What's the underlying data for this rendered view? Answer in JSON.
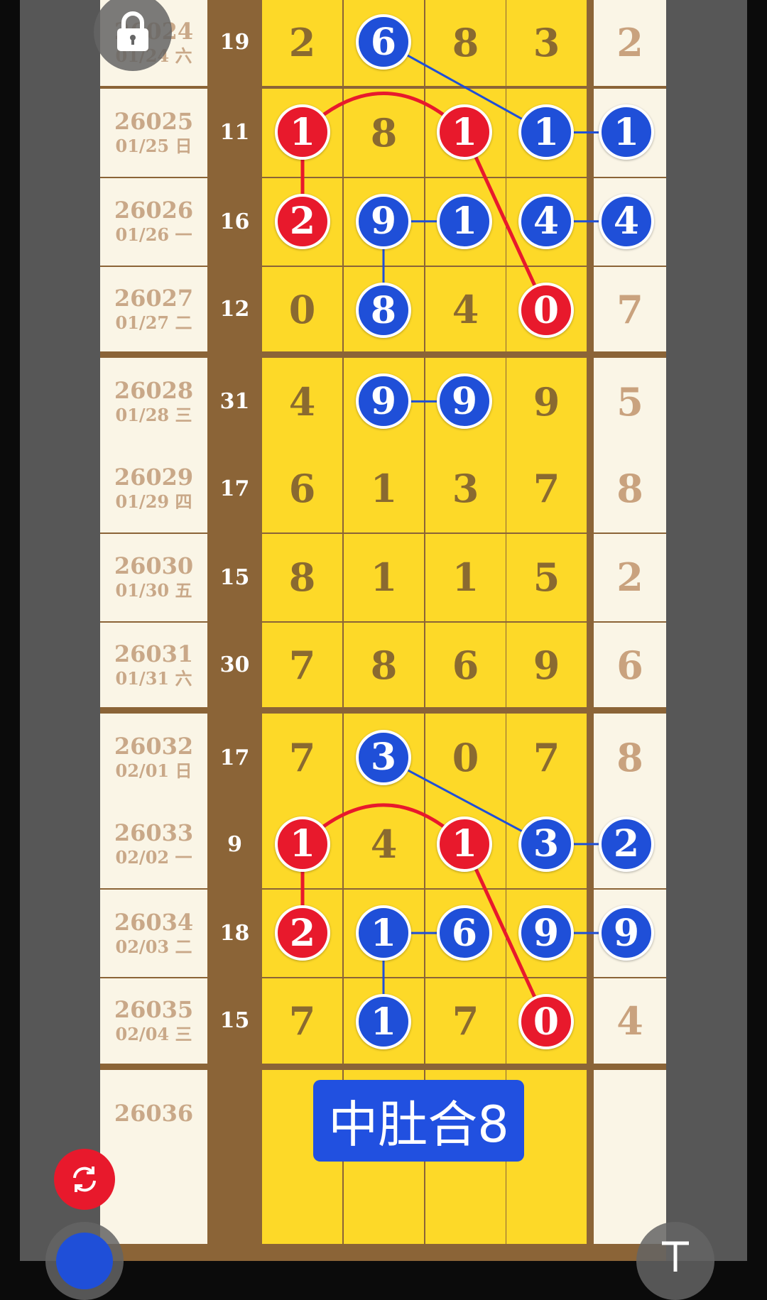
{
  "colors": {
    "red": "#e8192c",
    "blue": "#1f4fd8",
    "yellow": "#fdd928",
    "brown": "#8b6437",
    "cream": "#faf5e6"
  },
  "rows": [
    {
      "issue": "26024",
      "date": "01/24 六",
      "sum": "19",
      "nums": [
        "2",
        "6",
        "8",
        "3"
      ],
      "right": "2",
      "marks": [
        "",
        "b",
        "",
        "",
        ""
      ]
    },
    {
      "issue": "26025",
      "date": "01/25 日",
      "sum": "11",
      "nums": [
        "1",
        "8",
        "1",
        "1"
      ],
      "right": "1",
      "marks": [
        "r",
        "",
        "r",
        "b",
        "b"
      ]
    },
    {
      "issue": "26026",
      "date": "01/26 一",
      "sum": "16",
      "nums": [
        "2",
        "9",
        "1",
        "4"
      ],
      "right": "4",
      "marks": [
        "r",
        "b",
        "b",
        "b",
        "b"
      ]
    },
    {
      "issue": "26027",
      "date": "01/27 二",
      "sum": "12",
      "nums": [
        "0",
        "8",
        "4",
        "0"
      ],
      "right": "7",
      "marks": [
        "",
        "b",
        "",
        "r",
        ""
      ]
    },
    {
      "issue": "26028",
      "date": "01/28 三",
      "sum": "31",
      "nums": [
        "4",
        "9",
        "9",
        "9"
      ],
      "right": "5",
      "marks": [
        "",
        "b",
        "b",
        "",
        ""
      ]
    },
    {
      "issue": "26029",
      "date": "01/29 四",
      "sum": "17",
      "nums": [
        "6",
        "1",
        "3",
        "7"
      ],
      "right": "8",
      "marks": [
        "",
        "",
        "",
        "",
        ""
      ]
    },
    {
      "issue": "26030",
      "date": "01/30 五",
      "sum": "15",
      "nums": [
        "8",
        "1",
        "1",
        "5"
      ],
      "right": "2",
      "marks": [
        "",
        "",
        "",
        "",
        ""
      ]
    },
    {
      "issue": "26031",
      "date": "01/31 六",
      "sum": "30",
      "nums": [
        "7",
        "8",
        "6",
        "9"
      ],
      "right": "6",
      "marks": [
        "",
        "",
        "",
        "",
        ""
      ]
    },
    {
      "issue": "26032",
      "date": "02/01 日",
      "sum": "17",
      "nums": [
        "7",
        "3",
        "0",
        "7"
      ],
      "right": "8",
      "marks": [
        "",
        "b",
        "",
        "",
        ""
      ]
    },
    {
      "issue": "26033",
      "date": "02/02 一",
      "sum": "9",
      "nums": [
        "1",
        "4",
        "1",
        "3"
      ],
      "right": "2",
      "marks": [
        "r",
        "",
        "r",
        "b",
        "b"
      ]
    },
    {
      "issue": "26034",
      "date": "02/03 二",
      "sum": "18",
      "nums": [
        "2",
        "1",
        "6",
        "9"
      ],
      "right": "9",
      "marks": [
        "r",
        "b",
        "b",
        "b",
        "b"
      ]
    },
    {
      "issue": "26035",
      "date": "02/04 三",
      "sum": "15",
      "nums": [
        "7",
        "1",
        "7",
        "0"
      ],
      "right": "4",
      "marks": [
        "",
        "b",
        "",
        "r",
        ""
      ]
    },
    {
      "issue": "26036",
      "date": "",
      "sum": "",
      "nums": [
        "",
        "",
        "",
        ""
      ],
      "right": "",
      "marks": [
        "",
        "",
        "",
        "",
        ""
      ]
    },
    {
      "issue": "",
      "date": "",
      "sum": "",
      "nums": [
        "",
        "",
        "",
        ""
      ],
      "right": "",
      "marks": [
        "",
        "",
        "",
        "",
        ""
      ]
    }
  ],
  "links": [
    {
      "c": "b",
      "from": [
        0,
        1
      ],
      "to": [
        1,
        3
      ]
    },
    {
      "c": "b",
      "from": [
        1,
        3
      ],
      "to": [
        1,
        4
      ]
    },
    {
      "c": "b",
      "from": [
        2,
        1
      ],
      "to": [
        2,
        2
      ]
    },
    {
      "c": "b",
      "from": [
        2,
        3
      ],
      "to": [
        2,
        4
      ]
    },
    {
      "c": "b",
      "from": [
        2,
        1
      ],
      "to": [
        3,
        1
      ]
    },
    {
      "c": "b",
      "from": [
        4,
        1
      ],
      "to": [
        4,
        2
      ]
    },
    {
      "c": "r",
      "from": [
        1,
        0
      ],
      "to": [
        1,
        2
      ],
      "arc": true
    },
    {
      "c": "r",
      "from": [
        1,
        0
      ],
      "to": [
        2,
        0
      ]
    },
    {
      "c": "r",
      "from": [
        1,
        2
      ],
      "to": [
        3,
        3
      ]
    },
    {
      "c": "b",
      "from": [
        8,
        1
      ],
      "to": [
        9,
        3
      ]
    },
    {
      "c": "b",
      "from": [
        9,
        3
      ],
      "to": [
        9,
        4
      ]
    },
    {
      "c": "b",
      "from": [
        10,
        1
      ],
      "to": [
        10,
        2
      ]
    },
    {
      "c": "b",
      "from": [
        10,
        3
      ],
      "to": [
        10,
        4
      ]
    },
    {
      "c": "b",
      "from": [
        10,
        1
      ],
      "to": [
        11,
        1
      ]
    },
    {
      "c": "r",
      "from": [
        9,
        0
      ],
      "to": [
        9,
        2
      ],
      "arc": true
    },
    {
      "c": "r",
      "from": [
        9,
        0
      ],
      "to": [
        10,
        0
      ]
    },
    {
      "c": "r",
      "from": [
        9,
        2
      ],
      "to": [
        11,
        3
      ]
    }
  ],
  "tag": "中肚合8",
  "icons": {
    "lock": "lock-icon",
    "refresh": "refresh-icon",
    "pen": "pen-icon",
    "text": "text-icon"
  }
}
